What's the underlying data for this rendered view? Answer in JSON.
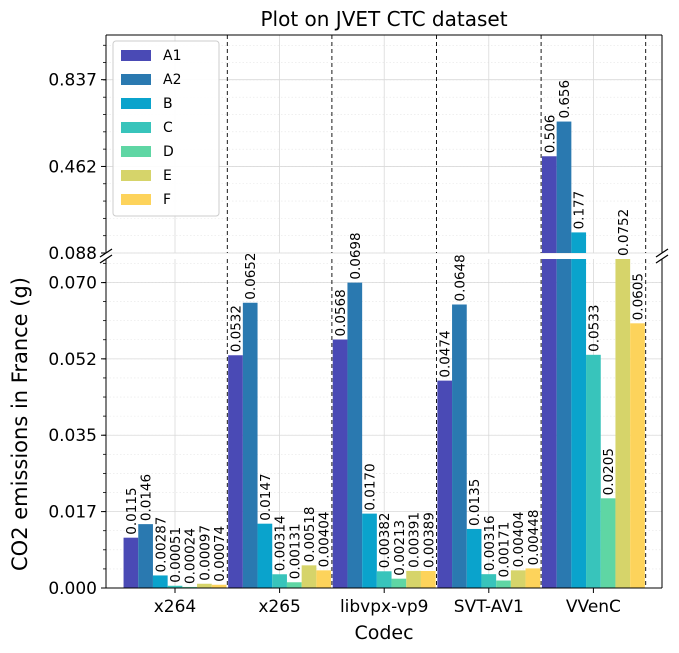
{
  "chart_data": {
    "type": "bar",
    "title": "Plot on JVET CTC dataset",
    "xlabel": "Codec",
    "ylabel": "CO2 emissions in France (g)",
    "categories": [
      "x264",
      "x265",
      "libvpx-vp9",
      "SVT-AV1",
      "VVenC"
    ],
    "series": [
      {
        "name": "A1",
        "values": [
          0.0115,
          0.0532,
          0.0568,
          0.0474,
          0.506
        ]
      },
      {
        "name": "A2",
        "values": [
          0.0146,
          0.0652,
          0.0698,
          0.0648,
          0.656
        ]
      },
      {
        "name": "B",
        "values": [
          0.00287,
          0.0147,
          0.017,
          0.0135,
          0.177
        ]
      },
      {
        "name": "C",
        "values": [
          0.00051,
          0.00314,
          0.00382,
          0.00316,
          0.0533
        ]
      },
      {
        "name": "D",
        "values": [
          0.00024,
          0.00131,
          0.00213,
          0.00171,
          0.0205
        ]
      },
      {
        "name": "E",
        "values": [
          0.00097,
          0.00518,
          0.00391,
          0.00404,
          0.0752
        ]
      },
      {
        "name": "F",
        "values": [
          0.00074,
          0.00404,
          0.00389,
          0.00448,
          0.0605
        ]
      }
    ],
    "value_labels": [
      [
        "0.0115",
        "0.0146",
        "0.00287",
        "0.00051",
        "0.00024",
        "0.00097",
        "0.00074"
      ],
      [
        "0.0532",
        "0.0652",
        "0.0147",
        "0.00314",
        "0.00131",
        "0.00518",
        "0.00404"
      ],
      [
        "0.0568",
        "0.0698",
        "0.0170",
        "0.00382",
        "0.00213",
        "0.00391",
        "0.00389"
      ],
      [
        "0.0474",
        "0.0648",
        "0.0135",
        "0.00316",
        "0.00171",
        "0.00404",
        "0.00448"
      ],
      [
        "0.506",
        "0.656",
        "0.177",
        "0.0533",
        "0.0205",
        "0.0752",
        "0.0605"
      ]
    ],
    "colors": [
      "#4a4ab5",
      "#2a79b0",
      "#0aa3cc",
      "#38c4bb",
      "#5fd6a4",
      "#d6d46a",
      "#fdd35b"
    ],
    "broken_y_axis": true,
    "lower_panel": {
      "ylim": [
        0,
        0.0752
      ],
      "ticks": [
        "0.000",
        "0.017",
        "0.035",
        "0.052",
        "0.070"
      ],
      "tick_values": [
        0,
        0.01746,
        0.03492,
        0.05238,
        0.0698
      ]
    },
    "upper_panel": {
      "ylim": [
        0.088,
        1.03
      ],
      "ticks": [
        "0.088",
        "0.462",
        "0.837"
      ],
      "tick_values": [
        0.088,
        0.462,
        0.837
      ]
    },
    "legend": {
      "position": "upper-left",
      "entries": [
        "A1",
        "A2",
        "B",
        "C",
        "D",
        "E",
        "F"
      ]
    },
    "grid": true
  }
}
